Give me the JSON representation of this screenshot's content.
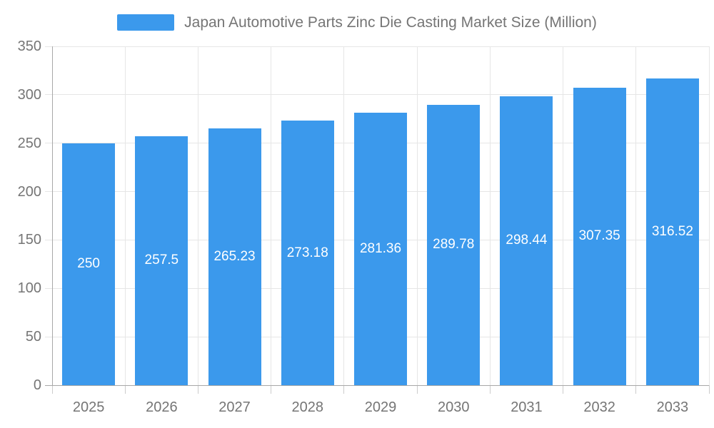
{
  "chart_data": {
    "type": "bar",
    "title": "Japan Automotive Parts Zinc Die Casting Market Size (Million)",
    "categories": [
      "2025",
      "2026",
      "2027",
      "2028",
      "2029",
      "2030",
      "2031",
      "2032",
      "2033"
    ],
    "values": [
      250,
      257.5,
      265.23,
      273.18,
      281.36,
      289.78,
      298.44,
      307.35,
      316.52
    ],
    "value_labels": [
      "250",
      "257.5",
      "265.23",
      "273.18",
      "281.36",
      "289.78",
      "298.44",
      "307.35",
      "316.52"
    ],
    "yticks": [
      0,
      50,
      100,
      150,
      200,
      250,
      300,
      350
    ],
    "ytick_labels": [
      "0",
      "50",
      "100",
      "150",
      "200",
      "250",
      "300",
      "350"
    ],
    "ylim": [
      0,
      350
    ],
    "xlabel": "",
    "ylabel": "",
    "grid": true,
    "legend_position": "top",
    "colors": {
      "bar": "#3b99ec",
      "bar_label_text": "#ffffff",
      "axis_text": "#757575",
      "title_text": "#757575",
      "gridline": "#e6e6e6",
      "tick_line": "#cccccc",
      "axis_line": "#a8a8a8",
      "background": "#ffffff"
    }
  }
}
